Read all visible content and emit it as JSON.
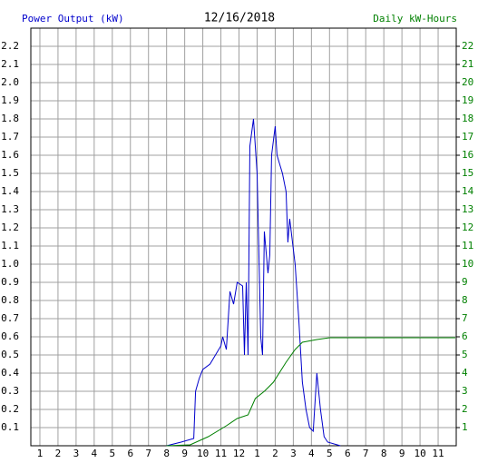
{
  "chart_data": {
    "type": "line",
    "title": "12/16/2018",
    "ylabel": "Power Output (kW)",
    "y2label": "Daily kW-Hours",
    "ylabel_color": "#0000cc",
    "y2label_color": "#008000",
    "xlim": [
      0.5,
      24
    ],
    "xticks": [
      {
        "value": 1,
        "label": "1"
      },
      {
        "value": 2,
        "label": "2"
      },
      {
        "value": 3,
        "label": "3"
      },
      {
        "value": 4,
        "label": "4"
      },
      {
        "value": 5,
        "label": "5"
      },
      {
        "value": 6,
        "label": "6"
      },
      {
        "value": 7,
        "label": "7"
      },
      {
        "value": 8,
        "label": "8"
      },
      {
        "value": 9,
        "label": "9"
      },
      {
        "value": 10,
        "label": "10"
      },
      {
        "value": 11,
        "label": "11"
      },
      {
        "value": 12,
        "label": "12"
      },
      {
        "value": 13,
        "label": "1"
      },
      {
        "value": 14,
        "label": "2"
      },
      {
        "value": 15,
        "label": "3"
      },
      {
        "value": 16,
        "label": "4"
      },
      {
        "value": 17,
        "label": "5"
      },
      {
        "value": 18,
        "label": "6"
      },
      {
        "value": 19,
        "label": "7"
      },
      {
        "value": 20,
        "label": "8"
      },
      {
        "value": 21,
        "label": "9"
      },
      {
        "value": 22,
        "label": "10"
      },
      {
        "value": 23,
        "label": "11"
      }
    ],
    "ylim": [
      0,
      2.3
    ],
    "yticks": [
      0.1,
      0.2,
      0.3,
      0.4,
      0.5,
      0.6,
      0.7,
      0.8,
      0.9,
      {
        "value": 1,
        "label": "1.0"
      },
      1.1,
      1.2,
      1.3,
      1.4,
      1.5,
      1.6,
      1.7,
      1.8,
      1.9,
      {
        "value": 2,
        "label": "2.0"
      },
      2.1,
      2.2
    ],
    "y2lim": [
      0,
      23
    ],
    "y2ticks": [
      1,
      2,
      3,
      4,
      5,
      6,
      7,
      8,
      9,
      10,
      11,
      12,
      13,
      14,
      15,
      16,
      17,
      18,
      19,
      20,
      21,
      22
    ],
    "grid": true,
    "series": [
      {
        "color": "#0000cc",
        "x": [
          8.0,
          8.8,
          9.5,
          9.6,
          9.8,
          10.0,
          10.4,
          10.7,
          11.0,
          11.1,
          11.3,
          11.5,
          11.7,
          11.9,
          12.2,
          12.3,
          12.4,
          12.5,
          12.6,
          12.8,
          13.0,
          13.2,
          13.3,
          13.4,
          13.6,
          13.7,
          13.8,
          14.0,
          14.1,
          14.4,
          14.6,
          14.7,
          14.8,
          15.1,
          15.3,
          15.5,
          15.7,
          15.9,
          16.1,
          16.3,
          16.5,
          16.7,
          16.9,
          17.6
        ],
        "values": [
          0.0,
          0.02,
          0.04,
          0.3,
          0.37,
          0.42,
          0.45,
          0.5,
          0.55,
          0.6,
          0.53,
          0.85,
          0.78,
          0.9,
          0.88,
          0.5,
          0.9,
          0.5,
          1.65,
          1.8,
          1.5,
          0.6,
          0.5,
          1.18,
          0.95,
          1.05,
          1.6,
          1.76,
          1.6,
          1.5,
          1.4,
          1.12,
          1.25,
          1.0,
          0.7,
          0.35,
          0.2,
          0.1,
          0.08,
          0.4,
          0.2,
          0.05,
          0.02,
          0.0
        ]
      },
      {
        "color": "#008000",
        "axis": "y2",
        "x": [
          8.0,
          9.3,
          10.3,
          11.3,
          11.9,
          12.5,
          12.9,
          13.4,
          13.9,
          14.6,
          15.1,
          15.5,
          16.3,
          17.0,
          23.95
        ],
        "values": [
          0,
          0.05,
          0.5,
          1.1,
          1.5,
          1.7,
          2.6,
          3.0,
          3.5,
          4.6,
          5.3,
          5.7,
          5.85,
          5.95,
          5.95
        ]
      }
    ]
  }
}
